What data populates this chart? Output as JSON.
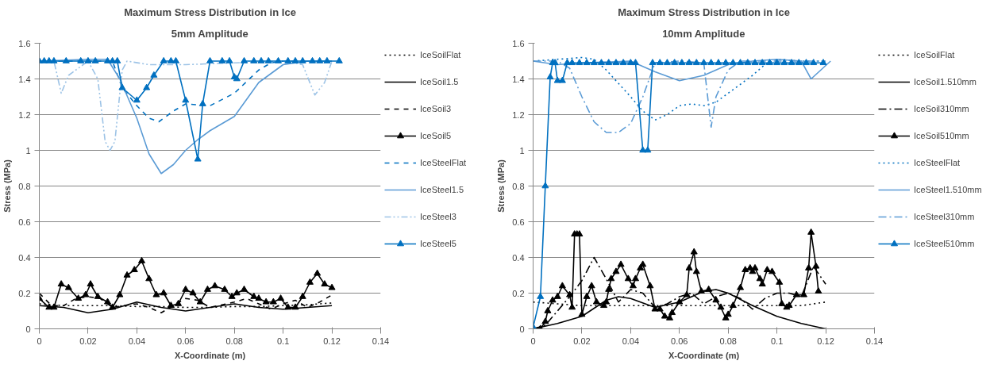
{
  "chart_data": [
    {
      "type": "line",
      "title": "Maximum Stress Distribution in Ice",
      "subtitle": "5mm Amplitude",
      "xlabel": "X-Coordinate (m)",
      "ylabel": "Stress (MPa)",
      "xlim": [
        0,
        0.14
      ],
      "ylim": [
        0,
        1.6
      ],
      "xticks": [
        0,
        0.02,
        0.04,
        0.06,
        0.08,
        0.1,
        0.12,
        0.14
      ],
      "yticks": [
        0,
        0.2,
        0.4,
        0.6,
        0.8,
        1,
        1.2,
        1.4,
        1.6
      ],
      "grid": "y",
      "legend": "right",
      "series": [
        {
          "name": "IceSoilFlat",
          "color": "#000000",
          "line_style": "dotted",
          "marker": "none",
          "x": [
            0,
            0.01,
            0.02,
            0.03,
            0.04,
            0.05,
            0.06,
            0.07,
            0.08,
            0.09,
            0.1,
            0.11,
            0.12
          ],
          "values": [
            0.14,
            0.13,
            0.13,
            0.13,
            0.125,
            0.125,
            0.12,
            0.12,
            0.125,
            0.125,
            0.13,
            0.135,
            0.145
          ]
        },
        {
          "name": "IceSoil1.5",
          "color": "#000000",
          "line_style": "solid",
          "marker": "none",
          "x": [
            0,
            0.01,
            0.02,
            0.03,
            0.04,
            0.05,
            0.06,
            0.07,
            0.08,
            0.09,
            0.1,
            0.11,
            0.12
          ],
          "values": [
            0.13,
            0.12,
            0.09,
            0.11,
            0.15,
            0.12,
            0.1,
            0.12,
            0.14,
            0.12,
            0.11,
            0.12,
            0.13
          ]
        },
        {
          "name": "IceSoil3",
          "color": "#000000",
          "line_style": "dashed",
          "marker": "none",
          "x": [
            0,
            0.005,
            0.01,
            0.015,
            0.02,
            0.025,
            0.03,
            0.035,
            0.04,
            0.045,
            0.05,
            0.055,
            0.06,
            0.065,
            0.07,
            0.08,
            0.085,
            0.09,
            0.095,
            0.1,
            0.105,
            0.11,
            0.115,
            0.12
          ],
          "values": [
            0.2,
            0.13,
            0.13,
            0.17,
            0.18,
            0.17,
            0.12,
            0.13,
            0.14,
            0.12,
            0.09,
            0.13,
            0.17,
            0.16,
            0.12,
            0.15,
            0.17,
            0.14,
            0.11,
            0.14,
            0.16,
            0.12,
            0.15,
            0.19
          ]
        },
        {
          "name": "IceSoil5",
          "color": "#000000",
          "line_style": "solid",
          "marker": "triangle",
          "x": [
            0,
            0.004,
            0.006,
            0.009,
            0.012,
            0.016,
            0.019,
            0.021,
            0.024,
            0.028,
            0.03,
            0.033,
            0.036,
            0.039,
            0.042,
            0.045,
            0.048,
            0.051,
            0.054,
            0.057,
            0.06,
            0.063,
            0.066,
            0.069,
            0.072,
            0.076,
            0.079,
            0.081,
            0.084,
            0.088,
            0.09,
            0.093,
            0.096,
            0.099,
            0.102,
            0.105,
            0.108,
            0.111,
            0.114,
            0.117,
            0.12
          ],
          "values": [
            0.17,
            0.12,
            0.12,
            0.25,
            0.23,
            0.17,
            0.19,
            0.25,
            0.18,
            0.15,
            0.12,
            0.19,
            0.3,
            0.33,
            0.38,
            0.28,
            0.19,
            0.2,
            0.13,
            0.14,
            0.22,
            0.2,
            0.15,
            0.22,
            0.24,
            0.22,
            0.18,
            0.2,
            0.22,
            0.18,
            0.17,
            0.15,
            0.15,
            0.17,
            0.12,
            0.12,
            0.18,
            0.26,
            0.31,
            0.25,
            0.23
          ]
        },
        {
          "name": "IceSteelFlat",
          "color": "#0070c0",
          "line_style": "dashed",
          "marker": "none",
          "x": [
            0,
            0.02,
            0.03,
            0.034,
            0.04,
            0.045,
            0.049,
            0.055,
            0.06,
            0.07,
            0.08,
            0.09,
            0.095,
            0.1,
            0.12
          ],
          "values": [
            1.5,
            1.5,
            1.5,
            1.35,
            1.25,
            1.18,
            1.16,
            1.22,
            1.26,
            1.25,
            1.32,
            1.45,
            1.49,
            1.5,
            1.5
          ]
        },
        {
          "name": "IceSteel1.5",
          "color": "#5b9bd5",
          "line_style": "solid",
          "marker": "none",
          "x": [
            0,
            0.02,
            0.028,
            0.033,
            0.04,
            0.045,
            0.05,
            0.055,
            0.06,
            0.065,
            0.07,
            0.08,
            0.09,
            0.1,
            0.11,
            0.12
          ],
          "values": [
            1.5,
            1.51,
            1.51,
            1.4,
            1.18,
            0.98,
            0.87,
            0.92,
            1.0,
            1.06,
            1.11,
            1.19,
            1.38,
            1.48,
            1.5,
            1.5
          ]
        },
        {
          "name": "IceSteel3",
          "color": "#9dc3e6",
          "line_style": "dashdotdot",
          "marker": "none",
          "x": [
            0,
            0.006,
            0.009,
            0.012,
            0.02,
            0.024,
            0.027,
            0.029,
            0.031,
            0.034,
            0.036,
            0.045,
            0.06,
            0.08,
            0.1,
            0.108,
            0.113,
            0.117,
            0.12
          ],
          "values": [
            1.5,
            1.5,
            1.32,
            1.42,
            1.5,
            1.4,
            1.05,
            1.0,
            1.05,
            1.45,
            1.5,
            1.48,
            1.48,
            1.49,
            1.5,
            1.48,
            1.31,
            1.38,
            1.5
          ]
        },
        {
          "name": "IceSteel5",
          "color": "#0070c0",
          "line_style": "solid",
          "marker": "triangle",
          "x": [
            0,
            0.002,
            0.004,
            0.006,
            0.011,
            0.017,
            0.02,
            0.023,
            0.028,
            0.03,
            0.032,
            0.034,
            0.04,
            0.044,
            0.047,
            0.051,
            0.054,
            0.056,
            0.06,
            0.065,
            0.067,
            0.07,
            0.075,
            0.078,
            0.08,
            0.081,
            0.084,
            0.088,
            0.091,
            0.094,
            0.098,
            0.102,
            0.105,
            0.108,
            0.112,
            0.115,
            0.118,
            0.123
          ],
          "values": [
            1.5,
            1.5,
            1.5,
            1.5,
            1.5,
            1.5,
            1.5,
            1.5,
            1.5,
            1.5,
            1.5,
            1.35,
            1.28,
            1.35,
            1.42,
            1.5,
            1.5,
            1.5,
            1.28,
            0.95,
            1.26,
            1.5,
            1.5,
            1.5,
            1.41,
            1.4,
            1.5,
            1.5,
            1.5,
            1.5,
            1.5,
            1.5,
            1.5,
            1.5,
            1.5,
            1.5,
            1.5,
            1.5
          ]
        }
      ]
    },
    {
      "type": "line",
      "title": "Maximum Stress Distribution in Ice",
      "subtitle": "10mm Amplitude",
      "xlabel": "X-Coordinate (m)",
      "ylabel": "Stress (MPa)",
      "xlim": [
        0,
        0.14
      ],
      "ylim": [
        0,
        1.6
      ],
      "xticks": [
        0,
        0.02,
        0.04,
        0.06,
        0.08,
        0.1,
        0.12,
        0.14
      ],
      "yticks": [
        0,
        0.2,
        0.4,
        0.6,
        0.8,
        1,
        1.2,
        1.4,
        1.6
      ],
      "grid": "y",
      "legend": "right",
      "series": [
        {
          "name": "IceSoilFlat",
          "color": "#000000",
          "line_style": "dotted",
          "marker": "none",
          "x": [
            0,
            0.01,
            0.02,
            0.04,
            0.06,
            0.08,
            0.1,
            0.11,
            0.12
          ],
          "values": [
            0.15,
            0.14,
            0.13,
            0.13,
            0.13,
            0.13,
            0.13,
            0.13,
            0.15
          ]
        },
        {
          "name": "IceSoil1.510mm",
          "color": "#000000",
          "line_style": "solid",
          "marker": "none",
          "x": [
            0,
            0.01,
            0.02,
            0.03,
            0.035,
            0.04,
            0.05,
            0.06,
            0.07,
            0.075,
            0.08,
            0.09,
            0.1,
            0.11,
            0.12
          ],
          "values": [
            0,
            0.03,
            0.07,
            0.16,
            0.18,
            0.17,
            0.12,
            0.15,
            0.21,
            0.22,
            0.2,
            0.13,
            0.07,
            0.03,
            0
          ]
        },
        {
          "name": "IceSoil310mm",
          "color": "#000000",
          "line_style": "dashdot",
          "marker": "none",
          "x": [
            0,
            0.005,
            0.01,
            0.015,
            0.02,
            0.025,
            0.03,
            0.035,
            0.04,
            0.045,
            0.05,
            0.055,
            0.06,
            0.065,
            0.07,
            0.075,
            0.08,
            0.085,
            0.09,
            0.095,
            0.1,
            0.105,
            0.11,
            0.115,
            0.12
          ],
          "values": [
            0,
            0.02,
            0.1,
            0.18,
            0.27,
            0.4,
            0.28,
            0.15,
            0.22,
            0.2,
            0.12,
            0.14,
            0.18,
            0.2,
            0.14,
            0.18,
            0.2,
            0.17,
            0.11,
            0.17,
            0.2,
            0.2,
            0.18,
            0.35,
            0.25
          ]
        },
        {
          "name": "IceSoil510mm",
          "color": "#000000",
          "line_style": "solid",
          "marker": "triangle",
          "x": [
            0,
            0.003,
            0.005,
            0.006,
            0.008,
            0.01,
            0.012,
            0.015,
            0.016,
            0.017,
            0.018,
            0.019,
            0.02,
            0.022,
            0.024,
            0.026,
            0.029,
            0.03,
            0.031,
            0.032,
            0.034,
            0.036,
            0.039,
            0.041,
            0.042,
            0.044,
            0.045,
            0.048,
            0.05,
            0.052,
            0.054,
            0.056,
            0.057,
            0.06,
            0.063,
            0.064,
            0.066,
            0.067,
            0.069,
            0.072,
            0.075,
            0.077,
            0.079,
            0.08,
            0.082,
            0.085,
            0.087,
            0.089,
            0.09,
            0.091,
            0.093,
            0.094,
            0.096,
            0.098,
            0.101,
            0.102,
            0.104,
            0.105,
            0.108,
            0.111,
            0.113,
            0.114,
            0.116,
            0.117
          ],
          "values": [
            0,
            0,
            0.04,
            0.1,
            0.16,
            0.18,
            0.24,
            0.19,
            0.12,
            0.53,
            0.53,
            0.53,
            0.08,
            0.18,
            0.24,
            0.15,
            0.13,
            0.15,
            0.22,
            0.28,
            0.32,
            0.36,
            0.28,
            0.24,
            0.28,
            0.34,
            0.36,
            0.24,
            0.11,
            0.11,
            0.07,
            0.06,
            0.09,
            0.15,
            0.19,
            0.34,
            0.43,
            0.32,
            0.21,
            0.22,
            0.16,
            0.12,
            0.06,
            0.08,
            0.13,
            0.23,
            0.33,
            0.34,
            0.32,
            0.34,
            0.28,
            0.25,
            0.33,
            0.32,
            0.26,
            0.14,
            0.12,
            0.13,
            0.19,
            0.19,
            0.34,
            0.54,
            0.35,
            0.21
          ]
        },
        {
          "name": "IceSteelFlat",
          "color": "#0070c0",
          "line_style": "dotted",
          "marker": "none",
          "x": [
            0,
            0.02,
            0.025,
            0.03,
            0.04,
            0.045,
            0.05,
            0.055,
            0.06,
            0.065,
            0.07,
            0.075,
            0.08,
            0.09,
            0.095,
            0.1,
            0.11,
            0.12
          ],
          "values": [
            1.5,
            1.52,
            1.51,
            1.45,
            1.3,
            1.22,
            1.17,
            1.2,
            1.25,
            1.26,
            1.25,
            1.27,
            1.32,
            1.42,
            1.48,
            1.51,
            1.5,
            1.5
          ]
        },
        {
          "name": "IceSteel1.510mm",
          "color": "#5b9bd5",
          "line_style": "solid",
          "marker": "none",
          "x": [
            0,
            0.01,
            0.02,
            0.04,
            0.05,
            0.06,
            0.07,
            0.08,
            0.09,
            0.1,
            0.11,
            0.114,
            0.118,
            0.122
          ],
          "values": [
            1.5,
            1.48,
            1.49,
            1.5,
            1.44,
            1.39,
            1.42,
            1.48,
            1.5,
            1.51,
            1.5,
            1.4,
            1.45,
            1.5
          ]
        },
        {
          "name": "IceSteel310mm",
          "color": "#5b9bd5",
          "line_style": "dashdot",
          "marker": "none",
          "x": [
            0,
            0.01,
            0.015,
            0.02,
            0.025,
            0.03,
            0.035,
            0.04,
            0.045,
            0.05,
            0.06,
            0.07,
            0.072,
            0.073,
            0.075,
            0.08,
            0.085,
            0.12
          ],
          "values": [
            1.5,
            1.5,
            1.46,
            1.3,
            1.16,
            1.1,
            1.1,
            1.15,
            1.3,
            1.49,
            1.5,
            1.49,
            1.25,
            1.13,
            1.3,
            1.45,
            1.5,
            1.5
          ]
        },
        {
          "name": "IceSteel510mm",
          "color": "#0070c0",
          "line_style": "solid",
          "marker": "triangle",
          "x": [
            0,
            0.003,
            0.005,
            0.007,
            0.008,
            0.009,
            0.01,
            0.012,
            0.014,
            0.016,
            0.019,
            0.022,
            0.025,
            0.028,
            0.031,
            0.034,
            0.037,
            0.04,
            0.042,
            0.045,
            0.047,
            0.049,
            0.052,
            0.055,
            0.058,
            0.061,
            0.064,
            0.067,
            0.07,
            0.073,
            0.076,
            0.079,
            0.082,
            0.085,
            0.088,
            0.091,
            0.094,
            0.097,
            0.1,
            0.103,
            0.106,
            0.109,
            0.112,
            0.115,
            0.119
          ],
          "values": [
            0.01,
            0.18,
            0.8,
            1.41,
            1.49,
            1.49,
            1.39,
            1.39,
            1.49,
            1.49,
            1.49,
            1.49,
            1.49,
            1.49,
            1.49,
            1.49,
            1.49,
            1.49,
            1.49,
            1.0,
            1.0,
            1.49,
            1.49,
            1.49,
            1.49,
            1.49,
            1.49,
            1.49,
            1.49,
            1.49,
            1.49,
            1.49,
            1.49,
            1.49,
            1.49,
            1.49,
            1.49,
            1.49,
            1.49,
            1.49,
            1.49,
            1.49,
            1.49,
            1.49,
            1.49
          ]
        }
      ]
    }
  ]
}
